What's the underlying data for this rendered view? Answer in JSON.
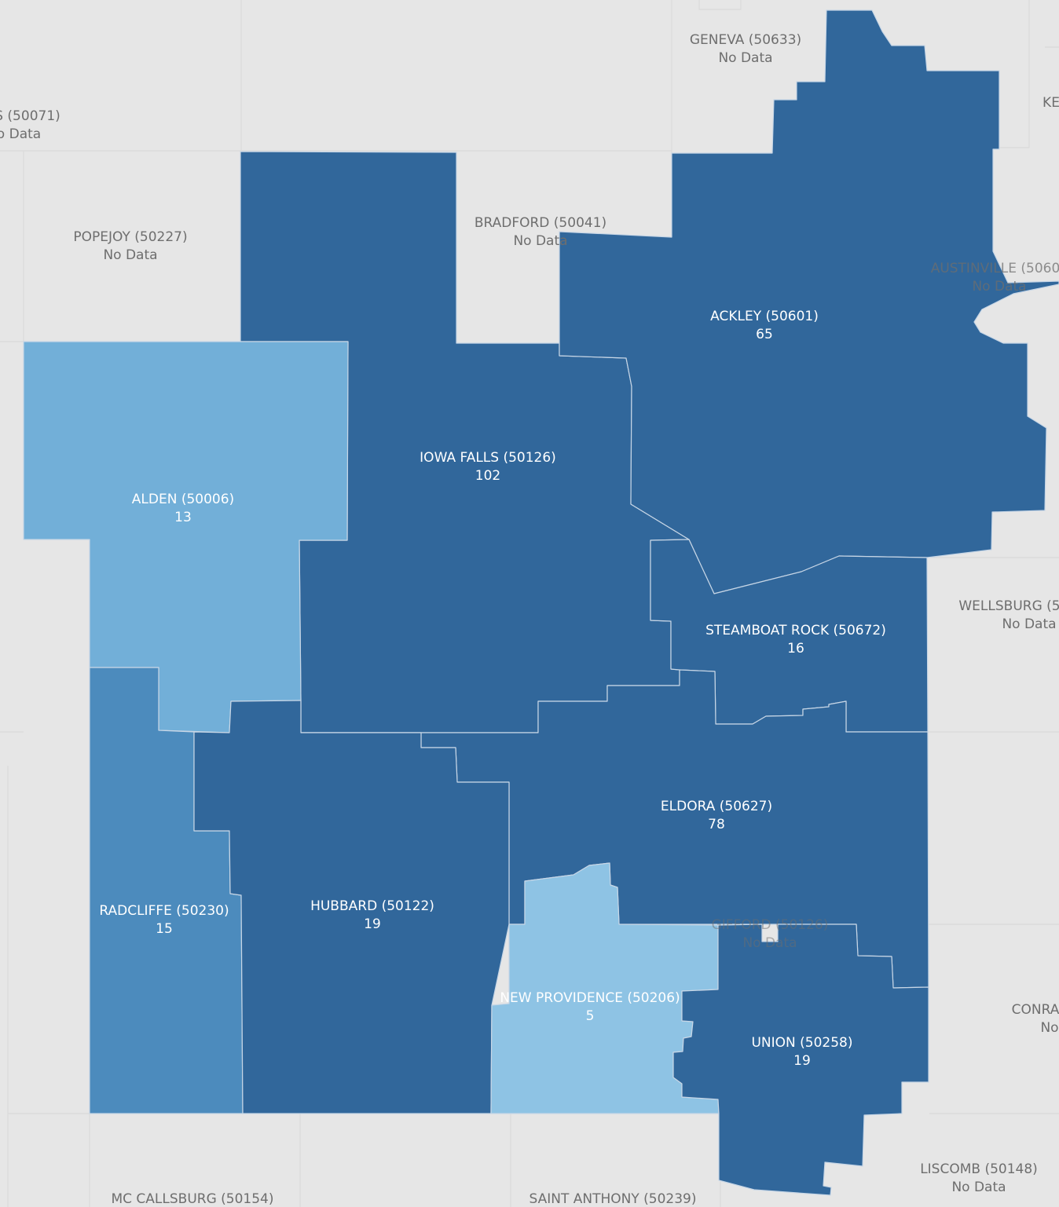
{
  "colors": {
    "background": "#e6e6e6",
    "dark_blue": "#31679b",
    "mid_blue": "#4c8bbd",
    "light_blue": "#72afd8",
    "lightest_blue": "#8ec3e4",
    "label_grey": "#6e6e6e",
    "label_white": "#ffffff"
  },
  "regions": [
    {
      "name": "ACKLEY (50601)",
      "value": "65"
    },
    {
      "name": "IOWA FALLS (50126)",
      "value": "102"
    },
    {
      "name": "ALDEN (50006)",
      "value": "13"
    },
    {
      "name": "STEAMBOAT ROCK (50672)",
      "value": "16"
    },
    {
      "name": "ELDORA (50627)",
      "value": "78"
    },
    {
      "name": "RADCLIFFE (50230)",
      "value": "15"
    },
    {
      "name": "HUBBARD (50122)",
      "value": "19"
    },
    {
      "name": "NEW PROVIDENCE (50206)",
      "value": "5"
    },
    {
      "name": "UNION (50258)",
      "value": "19"
    }
  ],
  "no_data_regions": [
    {
      "name": "GENEVA (50633)",
      "value": "No Data"
    },
    {
      "name": "S (50071)",
      "value": "o Data"
    },
    {
      "name": "POPEJOY (50227)",
      "value": "No Data"
    },
    {
      "name": "BRADFORD (50041)",
      "value": "No Data"
    },
    {
      "name": "KE",
      "value": ""
    },
    {
      "name": "AUSTINVILLE (5060",
      "value": "No Data"
    },
    {
      "name": "WELLSBURG (5",
      "value": "No Data"
    },
    {
      "name": "GIFFORD (50126)",
      "value": "No Data"
    },
    {
      "name": "CONRA",
      "value": "No"
    },
    {
      "name": "LISCOMB (50148)",
      "value": "No Data"
    },
    {
      "name": "MC CALLSBURG (50154)",
      "value": ""
    },
    {
      "name": "SAINT ANTHONY (50239)",
      "value": ""
    }
  ]
}
